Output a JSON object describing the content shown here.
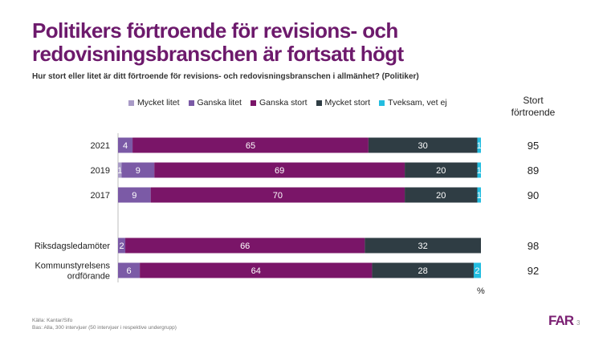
{
  "title_line1": "Politikers förtroende för revisions- och",
  "title_line2": "redovisningsbranschen är fortsatt högt",
  "subtitle": "Hur stort eller litet är ditt förtroende för revisions- och redovisningsbranschen i allmänhet? (Politiker)",
  "stort_header_line1": "Stort",
  "stort_header_line2": "förtroende",
  "unit_label": "%",
  "source_line1": "Källa: Kantar/Sifo",
  "source_line2": "Bas: Alla, 300 intervjuer (50 intervjuer i respektive undergrupp)",
  "logo_text": "FAR",
  "page_number": "3",
  "chart_data": {
    "type": "bar",
    "orientation": "horizontal",
    "stacked": true,
    "xlim": [
      0,
      100
    ],
    "unit": "%",
    "categories": [
      "2021",
      "2019",
      "2017",
      "",
      "Riksdagsledamöter",
      "Kommunstyrelsens ordförande"
    ],
    "category_lines": [
      [
        "2021"
      ],
      [
        "2019"
      ],
      [
        "2017"
      ],
      [],
      [
        "Riksdagsledamöter"
      ],
      [
        "Kommunstyrelsens",
        "ordförande"
      ]
    ],
    "series": [
      {
        "name": "Mycket litet",
        "color": "#a99bc7",
        "values": [
          0,
          1,
          0,
          null,
          0,
          0
        ],
        "labels": [
          "",
          "1",
          "",
          "",
          "",
          ""
        ]
      },
      {
        "name": "Ganska litet",
        "color": "#7b5aa6",
        "values": [
          4,
          9,
          9,
          null,
          2,
          6
        ],
        "labels": [
          "4",
          "9",
          "9",
          "",
          "2",
          "6"
        ]
      },
      {
        "name": "Ganska stort",
        "color": "#7a1568",
        "values": [
          65,
          69,
          70,
          null,
          66,
          64
        ],
        "labels": [
          "65",
          "69",
          "70",
          "",
          "66",
          "64"
        ]
      },
      {
        "name": "Mycket stort",
        "color": "#2f3d44",
        "values": [
          30,
          20,
          20,
          null,
          32,
          28
        ],
        "labels": [
          "30",
          "20",
          "20",
          "",
          "32",
          "28"
        ]
      },
      {
        "name": "Tveksam, vet ej",
        "color": "#23bde0",
        "values": [
          1,
          1,
          1,
          null,
          0,
          2
        ],
        "labels": [
          "1",
          "1",
          "1",
          "",
          "",
          "2"
        ]
      }
    ],
    "stort_fortroende": [
      "95",
      "89",
      "90",
      "",
      "98",
      "92"
    ]
  }
}
